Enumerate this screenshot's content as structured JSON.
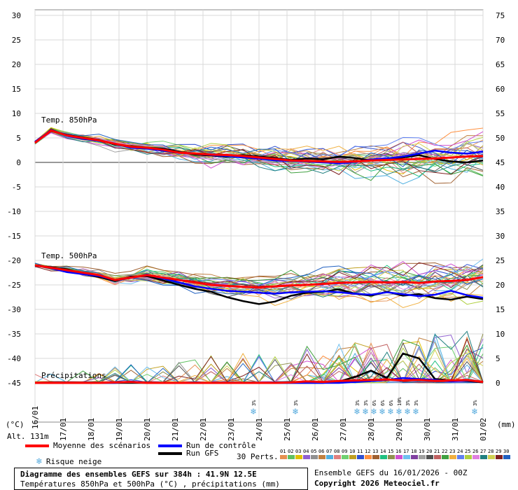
{
  "chart_data": {
    "type": "line",
    "title": "Diagramme des ensembles GEFS sur 384h : 41.9N 12.5E",
    "subtitle": "Températures 850hPa et 500hPa (°C) , précipitations (mm)",
    "left_axis": {
      "unit": "(°C)",
      "ticks": [
        30,
        25,
        20,
        15,
        10,
        5,
        0,
        -5,
        -10,
        -15,
        -20,
        -25,
        -30,
        -35,
        -40,
        -45
      ]
    },
    "right_axis": {
      "unit": "(mm)",
      "ticks": [
        75,
        70,
        65,
        60,
        55,
        50,
        45,
        40,
        35,
        30,
        25,
        20,
        15,
        10,
        5,
        0
      ]
    },
    "x_ticks": [
      "17/01",
      "18/01",
      "19/01",
      "20/01",
      "21/01",
      "22/01",
      "23/01",
      "24/01",
      "25/01",
      "26/01",
      "27/01",
      "28/01",
      "29/01",
      "30/01",
      "31/01",
      "01/02"
    ],
    "x_tick_left_label": "16/01",
    "panels": [
      {
        "label": "Temp. 850hPa",
        "mean": [
          4,
          6.5,
          5.5,
          5,
          4.5,
          3.8,
          3.2,
          3,
          2.6,
          2,
          1.8,
          1.6,
          1.5,
          1.3,
          1,
          0.7,
          0.4,
          0.3,
          0.2,
          0.1,
          0.2,
          0.4,
          0.5,
          0.6,
          0.7,
          0.8,
          1.0,
          1.2,
          1.3
        ],
        "control": [
          4.2,
          6.6,
          5.4,
          4.8,
          4.4,
          3.8,
          3.0,
          2.8,
          2.4,
          2.0,
          1.8,
          1.5,
          1.3,
          1.0,
          0.8,
          0.4,
          0.3,
          0.2,
          0.0,
          -0.2,
          0.1,
          0.6,
          0.8,
          1.2,
          1.8,
          2.4,
          2.0,
          1.8,
          2.2
        ],
        "gfs": [
          4.1,
          6.4,
          5.6,
          5.1,
          4.6,
          3.6,
          3.3,
          3.0,
          2.8,
          2.2,
          1.6,
          1.4,
          1.2,
          1.5,
          1.2,
          0.9,
          0.5,
          0.8,
          0.6,
          1.2,
          0.9,
          0.4,
          0.5,
          1.0,
          1.5,
          0.7,
          0.2,
          0.0,
          0.4
        ]
      },
      {
        "label": "Temp. 500hPa",
        "mean": [
          -21,
          -21.5,
          -22,
          -22.5,
          -23,
          -24,
          -23.5,
          -23,
          -23.5,
          -24,
          -24.5,
          -25,
          -25.2,
          -25.4,
          -25.5,
          -25.3,
          -25.1,
          -25,
          -24.8,
          -24.6,
          -24.5,
          -24.4,
          -24.5,
          -24.4,
          -24.6,
          -24.3,
          -24.2,
          -24.0,
          -23.4
        ],
        "control": [
          -21,
          -21.6,
          -22.4,
          -22.8,
          -23.2,
          -24.0,
          -23.6,
          -22.9,
          -23.7,
          -24.5,
          -25.3,
          -25.8,
          -26.2,
          -26.4,
          -26.6,
          -26.8,
          -26.5,
          -26.4,
          -26.3,
          -26.5,
          -26.8,
          -27.0,
          -26.5,
          -26.9,
          -27.3,
          -27.0,
          -26.2,
          -27.1,
          -27.6
        ],
        "gfs": [
          -21,
          -21.4,
          -21.8,
          -22.7,
          -23.4,
          -24.2,
          -23.3,
          -23.2,
          -24.1,
          -25.0,
          -25.8,
          -26.4,
          -27.5,
          -28.3,
          -28.9,
          -28.4,
          -27.2,
          -26.6,
          -26.4,
          -25.9,
          -26.8,
          -27.2,
          -26.4,
          -27.2,
          -26.9,
          -27.7,
          -28.0,
          -27.4,
          -27.9
        ]
      },
      {
        "label": "Précipitations",
        "mean": [
          0,
          0,
          0,
          0,
          0,
          0.1,
          0.2,
          0,
          0,
          0,
          0,
          0,
          0,
          0,
          0,
          0,
          0.1,
          0.3,
          0.2,
          0.4,
          0.5,
          0.6,
          0.7,
          0.5,
          0.6,
          0.4,
          0.5,
          0.6,
          0.2
        ],
        "control": [
          0,
          0,
          0,
          0,
          0,
          0,
          0.3,
          0,
          0,
          0,
          0,
          0,
          0,
          0,
          0,
          0,
          0,
          0,
          0,
          0,
          0.2,
          0.4,
          0.6,
          1.0,
          0.8,
          0.6,
          0.3,
          0.5,
          0.2
        ],
        "gfs": [
          0,
          0,
          0,
          0,
          0,
          0,
          0,
          0,
          0,
          0,
          0,
          0,
          0,
          0,
          0,
          0,
          0,
          0,
          0,
          0.3,
          1.2,
          2.5,
          1.0,
          6.0,
          5.0,
          0.8,
          0.5,
          0.4,
          0.1
        ]
      }
    ],
    "snow_risk": [
      {
        "date_index": 7.8,
        "pct": "3%"
      },
      {
        "date_index": 9.3,
        "pct": "3%"
      },
      {
        "date_index": 11.5,
        "pct": "3%"
      },
      {
        "date_index": 11.8,
        "pct": "3%"
      },
      {
        "date_index": 12.1,
        "pct": "6%"
      },
      {
        "date_index": 12.4,
        "pct": "6%"
      },
      {
        "date_index": 12.7,
        "pct": "6%"
      },
      {
        "date_index": 13.0,
        "pct": "10%"
      },
      {
        "date_index": 13.3,
        "pct": "3%"
      },
      {
        "date_index": 13.6,
        "pct": "3%"
      },
      {
        "date_index": 15.7,
        "pct": "3%"
      }
    ],
    "altitude": "Alt. 131m"
  },
  "legend": {
    "mean_label": "Moyenne des scénarios",
    "control_label": "Run de contrôle",
    "gfs_label": "Run GFS",
    "snow_label": "Risque neige",
    "perts_label": "30 Perts.",
    "pert_numbers": [
      "01",
      "02",
      "03",
      "04",
      "05",
      "06",
      "07",
      "08",
      "09",
      "10",
      "11",
      "12",
      "13",
      "14",
      "15",
      "16",
      "17",
      "18",
      "19",
      "20",
      "21",
      "22",
      "23",
      "24",
      "25",
      "26",
      "27",
      "28",
      "29",
      "30"
    ],
    "pert_colors": [
      "#e69050",
      "#60c060",
      "#e0c000",
      "#9060d0",
      "#909090",
      "#c08040",
      "#50b0e0",
      "#e08080",
      "#70d070",
      "#c0a020",
      "#3050d0",
      "#ff9040",
      "#a06030",
      "#20c080",
      "#909050",
      "#d050d0",
      "#70c0f0",
      "#8040a0",
      "#a0a0a0",
      "#505050",
      "#c06060",
      "#40a040",
      "#f0b040",
      "#6080f0",
      "#b0d040",
      "#e080e0",
      "#208080",
      "#d0d050",
      "#802020",
      "#2060c0"
    ],
    "colors": {
      "mean": "#ff0000",
      "control": "#0000ff",
      "gfs": "#000000",
      "snow": "#55aadd"
    }
  },
  "footer": {
    "box_line1": "Diagramme des ensembles GEFS sur 384h : 41.9N 12.5E",
    "box_line2": "Températures 850hPa et 500hPa (°C) , précipitations (mm)",
    "run_info": "Ensemble GEFS du 16/01/2026 - 00Z",
    "copyright": "Copyright 2026 Meteociel.fr"
  }
}
